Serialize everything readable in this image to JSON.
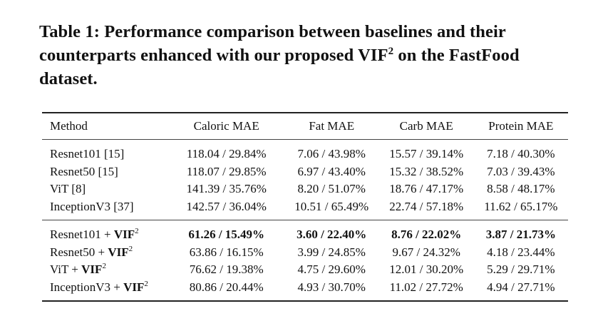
{
  "caption": {
    "prefix": "Table 1: Performance comparison between baselines and their counterparts enhanced with our proposed VIF",
    "sup": "2",
    "suffix": " on the FastFood dataset."
  },
  "table": {
    "headers": [
      "Method",
      "Caloric MAE",
      "Fat MAE",
      "Carb MAE",
      "Protein MAE"
    ],
    "baselines": [
      {
        "method": "Resnet101 [15]",
        "caloric": "118.04 / 29.84%",
        "fat": "7.06 / 43.98%",
        "carb": "15.57 / 39.14%",
        "protein": "7.18 / 40.30%"
      },
      {
        "method": "Resnet50 [15]",
        "caloric": "118.07 / 29.85%",
        "fat": "6.97 / 43.40%",
        "carb": "15.32 / 38.52%",
        "protein": "7.03 / 39.43%"
      },
      {
        "method": "ViT [8]",
        "caloric": "141.39 / 35.76%",
        "fat": "8.20 / 51.07%",
        "carb": "18.76 / 47.17%",
        "protein": "8.58 / 48.17%"
      },
      {
        "method": "InceptionV3 [37]",
        "caloric": "142.57 / 36.04%",
        "fat": "10.51 / 65.49%",
        "carb": "22.74 / 57.18%",
        "protein": "11.62 / 65.17%"
      }
    ],
    "enhanced": [
      {
        "method_base": "Resnet101 + ",
        "vif": "VIF",
        "sup": "2",
        "caloric": "61.26 / 15.49%",
        "fat": "3.60 / 22.40%",
        "carb": "8.76 / 22.02%",
        "protein": "3.87 / 21.73%"
      },
      {
        "method_base": "Resnet50 + ",
        "vif": "VIF",
        "sup": "2",
        "caloric": "63.86 / 16.15%",
        "fat": "3.99 / 24.85%",
        "carb": "9.67 / 24.32%",
        "protein": "4.18 / 23.44%"
      },
      {
        "method_base": "ViT + ",
        "vif": "VIF",
        "sup": "2",
        "caloric": "76.62 / 19.38%",
        "fat": "4.75 / 29.60%",
        "carb": "12.01 / 30.20%",
        "protein": "5.29 / 29.71%"
      },
      {
        "method_base": "InceptionV3 + ",
        "vif": "VIF",
        "sup": "2",
        "caloric": "80.86 / 20.44%",
        "fat": "4.93 / 30.70%",
        "carb": "11.02 / 27.72%",
        "protein": "4.94 / 27.71%"
      }
    ]
  }
}
